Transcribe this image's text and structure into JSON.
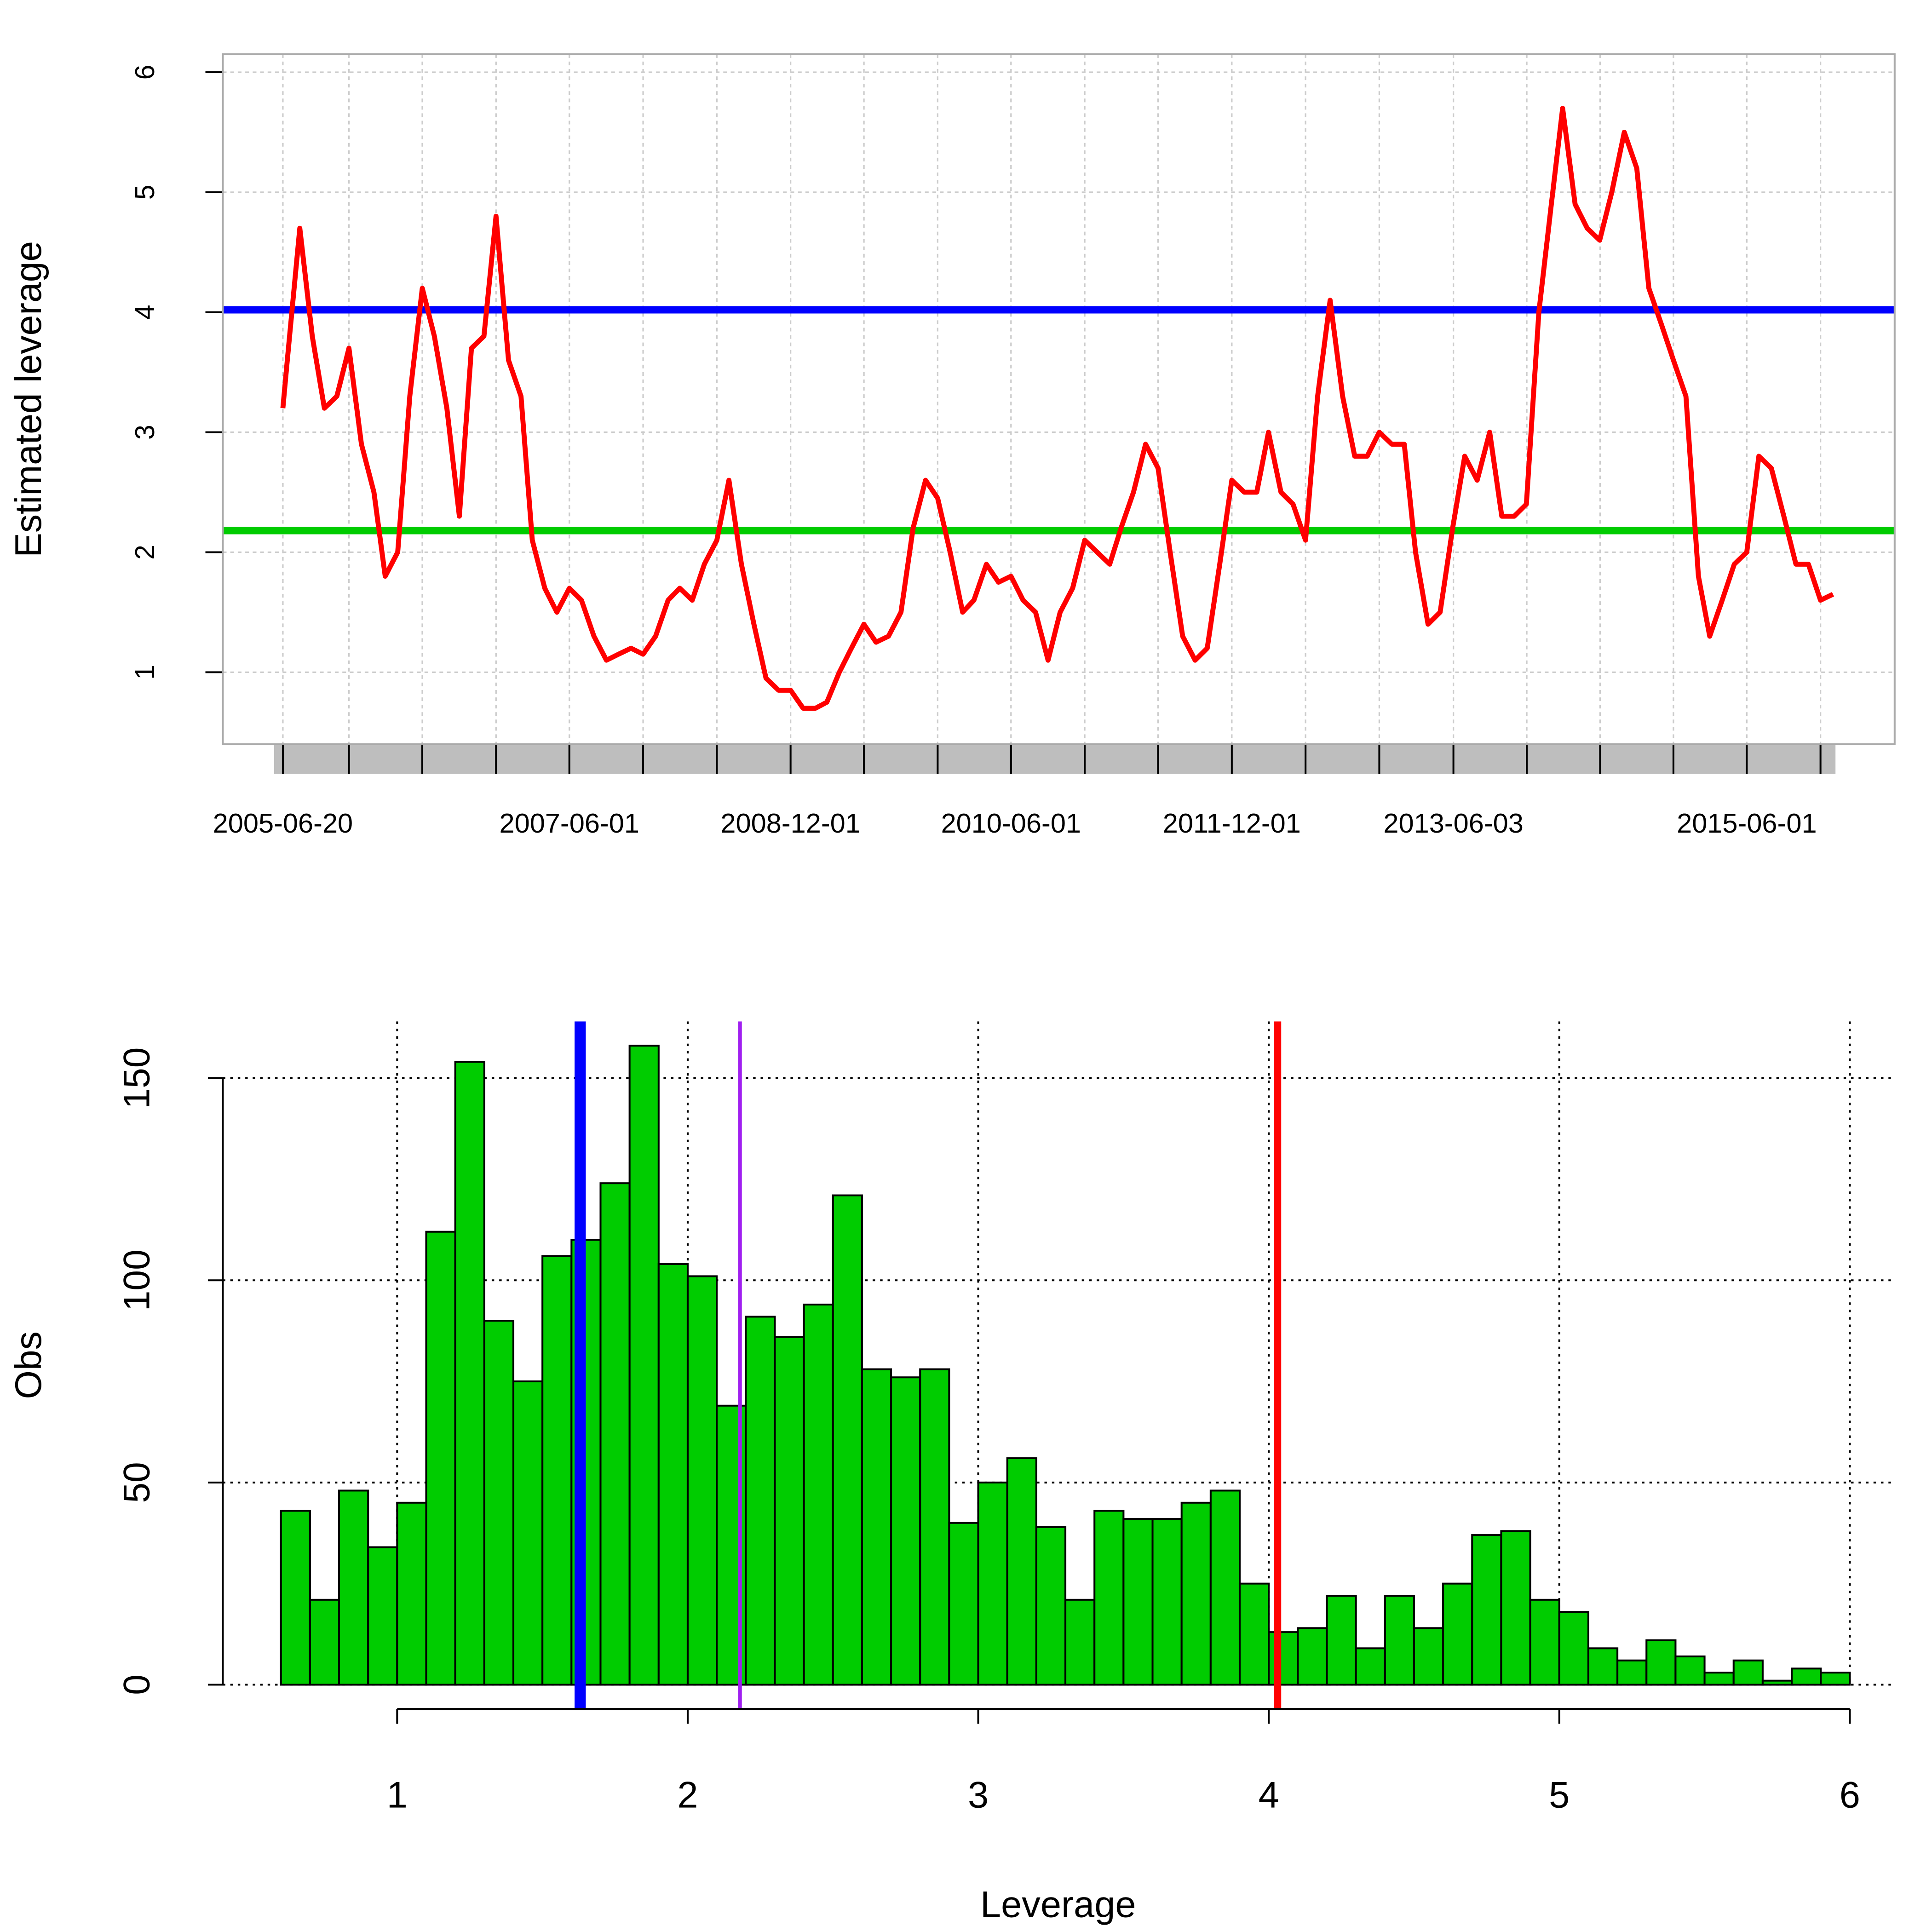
{
  "chart_data": [
    {
      "type": "line",
      "ylabel": "Estimated leverage",
      "color": "#ff0000",
      "x": [
        "2005-06-20",
        "2005-07-01",
        "2005-08-01",
        "2005-09-01",
        "2005-10-01",
        "2005-11-01",
        "2005-12-01",
        "2006-01-01",
        "2006-02-01",
        "2006-03-01",
        "2006-04-01",
        "2006-05-01",
        "2006-06-01",
        "2006-07-01",
        "2006-08-01",
        "2006-09-01",
        "2006-10-01",
        "2006-11-01",
        "2006-12-01",
        "2007-01-01",
        "2007-02-01",
        "2007-03-01",
        "2007-04-01",
        "2007-05-01",
        "2007-06-01",
        "2007-07-01",
        "2007-08-01",
        "2007-09-01",
        "2007-10-01",
        "2007-11-01",
        "2007-12-01",
        "2008-01-01",
        "2008-02-01",
        "2008-03-01",
        "2008-04-01",
        "2008-05-01",
        "2008-06-01",
        "2008-07-01",
        "2008-08-01",
        "2008-09-01",
        "2008-10-01",
        "2008-11-01",
        "2008-12-01",
        "2009-01-01",
        "2009-02-01",
        "2009-03-01",
        "2009-04-01",
        "2009-05-01",
        "2009-06-01",
        "2009-07-01",
        "2009-08-01",
        "2009-09-01",
        "2009-10-01",
        "2009-11-01",
        "2009-12-01",
        "2010-01-01",
        "2010-02-01",
        "2010-03-01",
        "2010-04-01",
        "2010-05-01",
        "2010-06-01",
        "2010-07-01",
        "2010-08-01",
        "2010-09-01",
        "2010-10-01",
        "2010-11-01",
        "2010-12-01",
        "2011-01-01",
        "2011-02-01",
        "2011-03-01",
        "2011-04-01",
        "2011-05-01",
        "2011-06-01",
        "2011-07-01",
        "2011-08-01",
        "2011-09-01",
        "2011-10-01",
        "2011-11-01",
        "2011-12-01",
        "2012-01-01",
        "2012-02-01",
        "2012-03-01",
        "2012-04-01",
        "2012-05-01",
        "2012-06-01",
        "2012-07-01",
        "2012-08-01",
        "2012-09-01",
        "2012-10-01",
        "2012-11-01",
        "2012-12-01",
        "2013-01-01",
        "2013-02-01",
        "2013-03-01",
        "2013-04-01",
        "2013-05-01",
        "2013-06-01",
        "2013-07-01",
        "2013-08-01",
        "2013-09-01",
        "2013-10-01",
        "2013-11-01",
        "2013-12-01",
        "2014-01-01",
        "2014-02-01",
        "2014-03-01",
        "2014-04-01",
        "2014-05-01",
        "2014-06-01",
        "2014-07-01",
        "2014-08-01",
        "2014-09-01",
        "2014-10-01",
        "2014-11-01",
        "2014-12-01",
        "2015-01-01",
        "2015-02-01",
        "2015-03-01",
        "2015-04-01",
        "2015-05-01",
        "2015-06-01",
        "2015-07-01",
        "2015-08-01",
        "2015-09-01",
        "2015-10-01",
        "2015-11-01",
        "2015-12-01",
        "2016-01-01"
      ],
      "values": [
        3.2,
        3.6,
        4.7,
        3.8,
        3.2,
        3.3,
        3.7,
        2.9,
        2.5,
        1.8,
        2.0,
        3.3,
        4.2,
        3.8,
        3.2,
        2.3,
        3.7,
        3.8,
        4.8,
        3.6,
        3.3,
        2.1,
        1.7,
        1.5,
        1.7,
        1.6,
        1.3,
        1.1,
        1.15,
        1.2,
        1.15,
        1.3,
        1.6,
        1.7,
        1.6,
        1.9,
        2.1,
        2.6,
        1.9,
        1.4,
        0.95,
        0.85,
        0.85,
        0.7,
        0.7,
        0.75,
        1.0,
        1.2,
        1.4,
        1.25,
        1.3,
        1.5,
        2.2,
        2.6,
        2.45,
        2.0,
        1.5,
        1.6,
        1.9,
        1.75,
        1.8,
        1.6,
        1.5,
        1.1,
        1.5,
        1.7,
        2.1,
        2.0,
        1.9,
        2.2,
        2.5,
        2.9,
        2.7,
        2.0,
        1.3,
        1.1,
        1.2,
        1.9,
        2.6,
        2.5,
        2.5,
        3.0,
        2.5,
        2.4,
        2.1,
        3.3,
        4.1,
        3.3,
        2.8,
        2.8,
        3.0,
        2.9,
        2.9,
        2.0,
        1.4,
        1.5,
        2.2,
        2.8,
        2.6,
        3.0,
        2.3,
        2.3,
        2.4,
        4.0,
        4.9,
        5.7,
        4.9,
        4.7,
        4.6,
        5.0,
        5.5,
        5.2,
        4.2,
        3.9,
        3.6,
        3.3,
        1.8,
        1.3,
        1.6,
        1.9,
        2.0,
        2.8,
        2.7,
        2.3,
        1.9,
        1.9,
        1.6,
        1.65
      ],
      "xlim": [
        "2005-01-22",
        "2016-06-02"
      ],
      "xticks": [
        {
          "value": "2005-06-20",
          "label": "2005-06-20"
        },
        {
          "value": "2005-12-01",
          "label": null
        },
        {
          "value": "2006-06-01",
          "label": null
        },
        {
          "value": "2006-12-01",
          "label": null
        },
        {
          "value": "2007-06-01",
          "label": "2007-06-01"
        },
        {
          "value": "2007-12-01",
          "label": null
        },
        {
          "value": "2008-06-01",
          "label": null
        },
        {
          "value": "2008-12-01",
          "label": "2008-12-01"
        },
        {
          "value": "2009-06-01",
          "label": null
        },
        {
          "value": "2009-12-01",
          "label": null
        },
        {
          "value": "2010-06-01",
          "label": "2010-06-01"
        },
        {
          "value": "2010-12-01",
          "label": null
        },
        {
          "value": "2011-06-01",
          "label": null
        },
        {
          "value": "2011-12-01",
          "label": "2011-12-01"
        },
        {
          "value": "2012-06-01",
          "label": null
        },
        {
          "value": "2012-12-01",
          "label": null
        },
        {
          "value": "2013-06-03",
          "label": "2013-06-03"
        },
        {
          "value": "2013-12-02",
          "label": null
        },
        {
          "value": "2014-06-02",
          "label": null
        },
        {
          "value": "2014-12-01",
          "label": null
        },
        {
          "value": "2015-06-01",
          "label": "2015-06-01"
        },
        {
          "value": "2015-12-01",
          "label": null
        }
      ],
      "ylim": [
        0.4,
        6.15
      ],
      "yticks": [
        1,
        2,
        3,
        4,
        5,
        6
      ],
      "grid": true,
      "hlines": [
        {
          "value": 4.02,
          "color": "#0000ff"
        },
        {
          "value": 2.18,
          "color": "#00cc00"
        }
      ]
    },
    {
      "type": "histogram",
      "xlabel": "Leverage",
      "ylabel": "Obs",
      "color": "#00cc00",
      "bins": [
        0.6,
        0.7,
        0.8,
        0.9,
        1.0,
        1.1,
        1.2,
        1.3,
        1.4,
        1.5,
        1.6,
        1.7,
        1.8,
        1.9,
        2.0,
        2.1,
        2.2,
        2.3,
        2.4,
        2.5,
        2.6,
        2.7,
        2.8,
        2.9,
        3.0,
        3.1,
        3.2,
        3.3,
        3.4,
        3.5,
        3.6,
        3.7,
        3.8,
        3.9,
        4.0,
        4.1,
        4.2,
        4.3,
        4.4,
        4.5,
        4.6,
        4.7,
        4.8,
        4.9,
        5.0,
        5.1,
        5.2,
        5.3,
        5.4,
        5.5,
        5.6,
        5.7,
        5.8,
        5.9,
        6.0
      ],
      "values": [
        43,
        21,
        48,
        34,
        45,
        112,
        154,
        90,
        75,
        106,
        110,
        124,
        158,
        104,
        101,
        69,
        91,
        86,
        94,
        121,
        78,
        76,
        78,
        40,
        50,
        56,
        39,
        21,
        43,
        41,
        41,
        45,
        48,
        25,
        13,
        14,
        22,
        9,
        22,
        14,
        25,
        37,
        38,
        21,
        18,
        9,
        6,
        11,
        7,
        3,
        6,
        1,
        4,
        3
      ],
      "xlim": [
        0.4,
        6.15
      ],
      "xticks": [
        1,
        2,
        3,
        4,
        5,
        6
      ],
      "ylim": [
        -6,
        164
      ],
      "yticks": [
        0,
        50,
        100,
        150
      ],
      "grid": true,
      "vlines": [
        {
          "value": 1.63,
          "color": "#0000ff"
        },
        {
          "value": 2.18,
          "color": "#a020f0"
        },
        {
          "value": 4.03,
          "color": "#ff0000"
        }
      ]
    }
  ]
}
